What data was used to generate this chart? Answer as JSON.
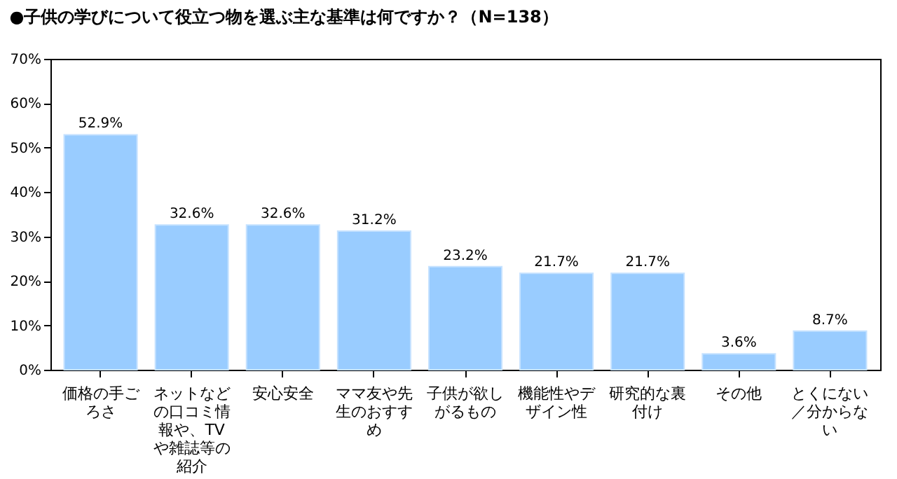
{
  "chart_data": {
    "type": "bar",
    "title": "●子供の学びについて役立つ物を選ぶ主な基準は何ですか？（N=138）",
    "categories": [
      "価格の手ごろさ",
      "ネットなどの口コミ情報や、TVや雑誌等の紹介",
      "安心安全",
      "ママ友や先生のおすすめ",
      "子供が欲しがるもの",
      "機能性やデザイン性",
      "研究的な裏付け",
      "その他",
      "とくにない／分からない"
    ],
    "values": [
      52.9,
      32.6,
      32.6,
      31.2,
      23.2,
      21.7,
      21.7,
      3.6,
      8.7
    ],
    "value_labels": [
      "52.9%",
      "32.6%",
      "32.6%",
      "31.2%",
      "23.2%",
      "21.7%",
      "21.7%",
      "3.6%",
      "8.7%"
    ],
    "color": "#99ccff",
    "ylim": [
      0,
      70
    ],
    "yticks": [
      {
        "value": 0,
        "label": "0%"
      },
      {
        "value": 10,
        "label": "10%"
      },
      {
        "value": 20,
        "label": "20%"
      },
      {
        "value": 30,
        "label": "30%"
      },
      {
        "value": 40,
        "label": "40%"
      },
      {
        "value": 50,
        "label": "50%"
      },
      {
        "value": 60,
        "label": "60%"
      },
      {
        "value": 70,
        "label": "70%"
      }
    ],
    "grid": false
  }
}
